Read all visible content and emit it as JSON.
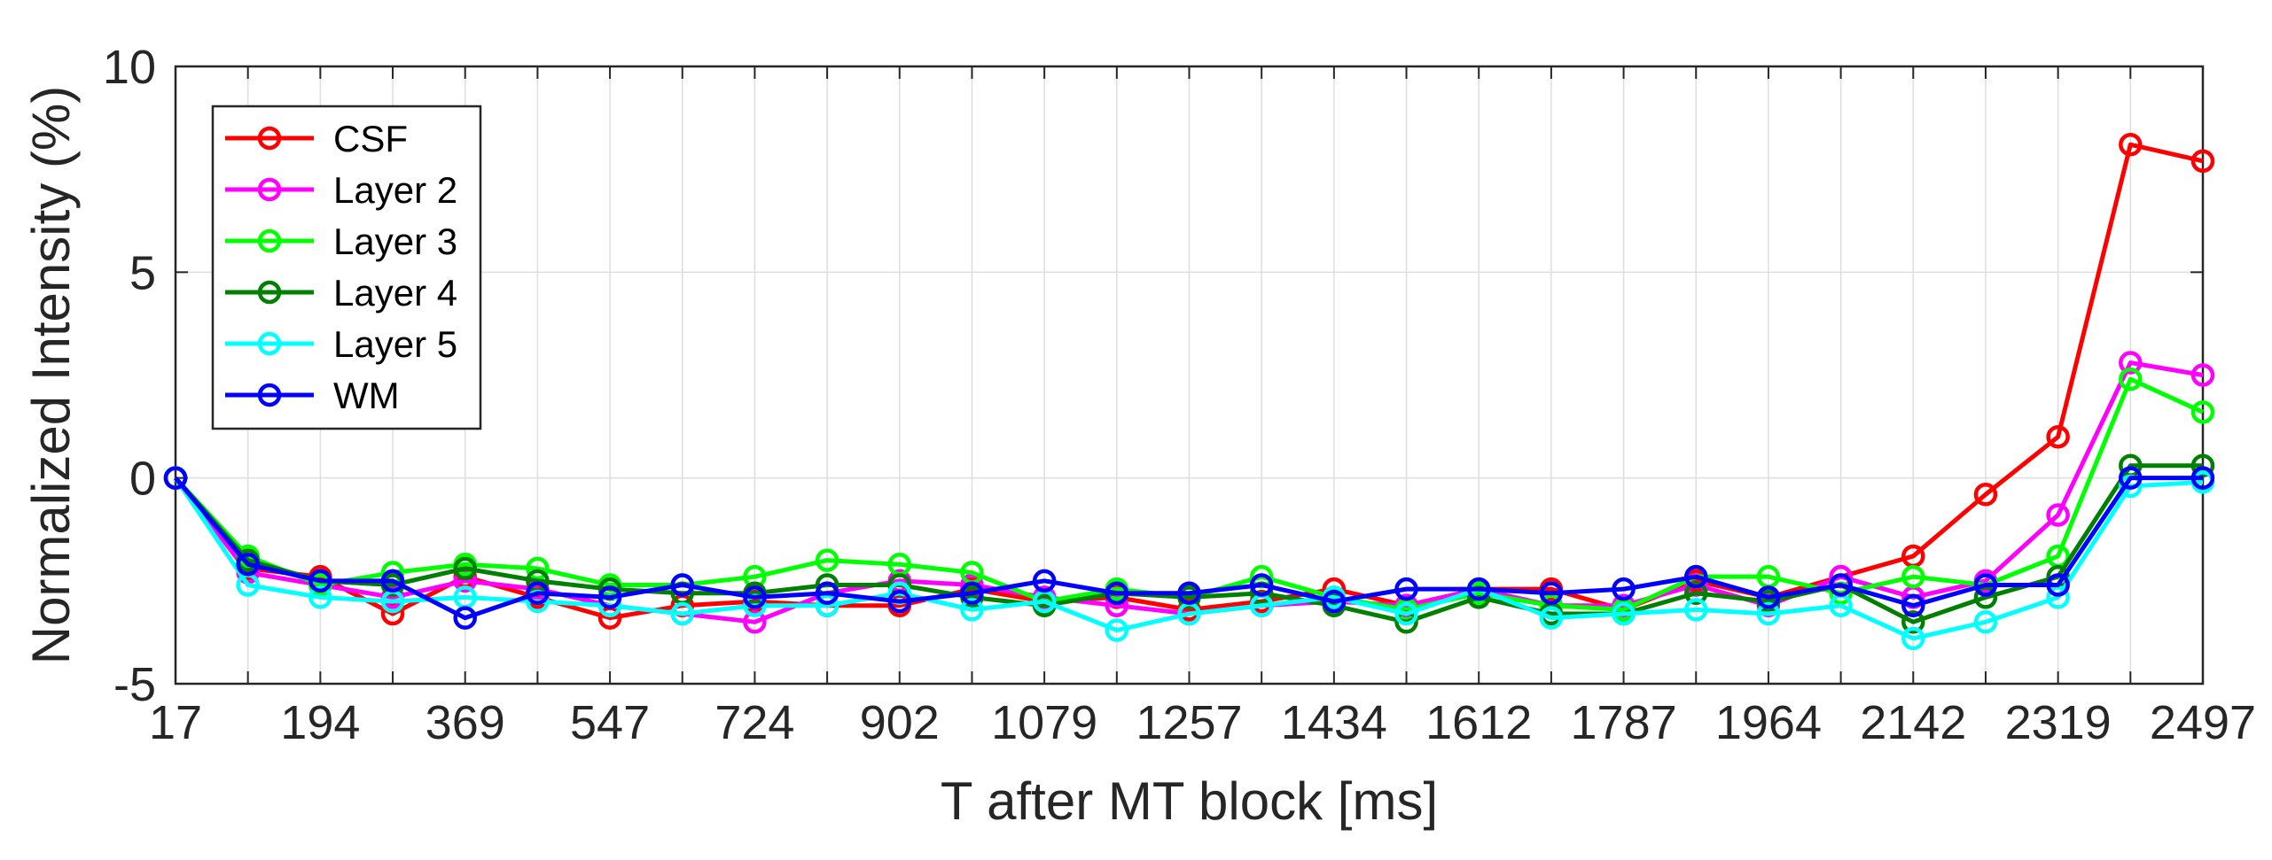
{
  "chart_data": {
    "type": "line",
    "title": "",
    "xlabel": "T after MT block [ms]",
    "ylabel": "Normalized Intensity (%)",
    "x_tick_labels": [
      "17",
      "194",
      "369",
      "547",
      "724",
      "902",
      "1079",
      "1257",
      "1434",
      "1612",
      "1787",
      "1964",
      "2142",
      "2319",
      "2497"
    ],
    "y_tick_labels": [
      "-5",
      "0",
      "5",
      "10"
    ],
    "y_ticks": [
      -5,
      0,
      5,
      10
    ],
    "ylim": [
      -5,
      10
    ],
    "grid": true,
    "legend_position": "top-left",
    "x": [
      17,
      106,
      194,
      282,
      369,
      458,
      547,
      636,
      724,
      813,
      902,
      991,
      1079,
      1168,
      1257,
      1346,
      1434,
      1523,
      1612,
      1700,
      1787,
      1876,
      1964,
      2053,
      2142,
      2231,
      2319,
      2408,
      2497
    ],
    "series": [
      {
        "name": "CSF",
        "color": "#ff0000",
        "values": [
          0,
          -2.2,
          -2.4,
          -3.3,
          -2.4,
          -2.9,
          -3.4,
          -3.1,
          -3.0,
          -3.1,
          -3.1,
          -2.7,
          -3.0,
          -2.9,
          -3.2,
          -3.0,
          -2.7,
          -3.1,
          -2.7,
          -2.7,
          -3.2,
          -2.5,
          -2.9,
          -2.4,
          -1.9,
          -0.4,
          1.0,
          8.1,
          7.7
        ]
      },
      {
        "name": "Layer 2",
        "color": "#ff00ff",
        "values": [
          0,
          -2.3,
          -2.6,
          -2.9,
          -2.5,
          -2.7,
          -3.1,
          -3.3,
          -3.5,
          -2.8,
          -2.5,
          -2.6,
          -2.9,
          -3.1,
          -3.3,
          -3.1,
          -3.0,
          -3.1,
          -2.7,
          -3.1,
          -3.1,
          -2.6,
          -3.1,
          -2.4,
          -2.9,
          -2.5,
          -0.9,
          2.8,
          2.5
        ]
      },
      {
        "name": "Layer 3",
        "color": "#00ff00",
        "values": [
          0,
          -1.9,
          -2.6,
          -2.3,
          -2.1,
          -2.2,
          -2.6,
          -2.6,
          -2.4,
          -2.0,
          -2.1,
          -2.3,
          -3.0,
          -2.7,
          -2.9,
          -2.4,
          -2.9,
          -3.2,
          -2.8,
          -3.1,
          -3.2,
          -2.4,
          -2.4,
          -2.8,
          -2.4,
          -2.6,
          -1.9,
          2.4,
          1.6
        ]
      },
      {
        "name": "Layer 4",
        "color": "#008000",
        "values": [
          0,
          -2.0,
          -2.5,
          -2.6,
          -2.2,
          -2.5,
          -2.7,
          -2.8,
          -2.8,
          -2.6,
          -2.6,
          -2.9,
          -3.1,
          -2.8,
          -2.9,
          -2.8,
          -3.1,
          -3.5,
          -2.9,
          -3.3,
          -3.3,
          -2.8,
          -3.0,
          -2.6,
          -3.5,
          -2.9,
          -2.4,
          0.3,
          0.3
        ]
      },
      {
        "name": "Layer 5",
        "color": "#00ffff",
        "values": [
          0,
          -2.6,
          -2.9,
          -3.0,
          -2.9,
          -3.0,
          -3.1,
          -3.3,
          -3.1,
          -3.1,
          -2.8,
          -3.2,
          -3.0,
          -3.7,
          -3.3,
          -3.1,
          -2.9,
          -3.3,
          -2.7,
          -3.4,
          -3.3,
          -3.2,
          -3.3,
          -3.1,
          -3.9,
          -3.5,
          -2.9,
          -0.2,
          -0.1
        ]
      },
      {
        "name": "WM",
        "color": "#0000ff",
        "values": [
          0,
          -2.1,
          -2.5,
          -2.5,
          -3.4,
          -2.8,
          -2.9,
          -2.6,
          -2.9,
          -2.8,
          -3.0,
          -2.8,
          -2.5,
          -2.8,
          -2.8,
          -2.6,
          -3.0,
          -2.7,
          -2.7,
          -2.8,
          -2.7,
          -2.4,
          -2.9,
          -2.6,
          -3.1,
          -2.6,
          -2.6,
          0.0,
          0.0
        ]
      }
    ]
  }
}
